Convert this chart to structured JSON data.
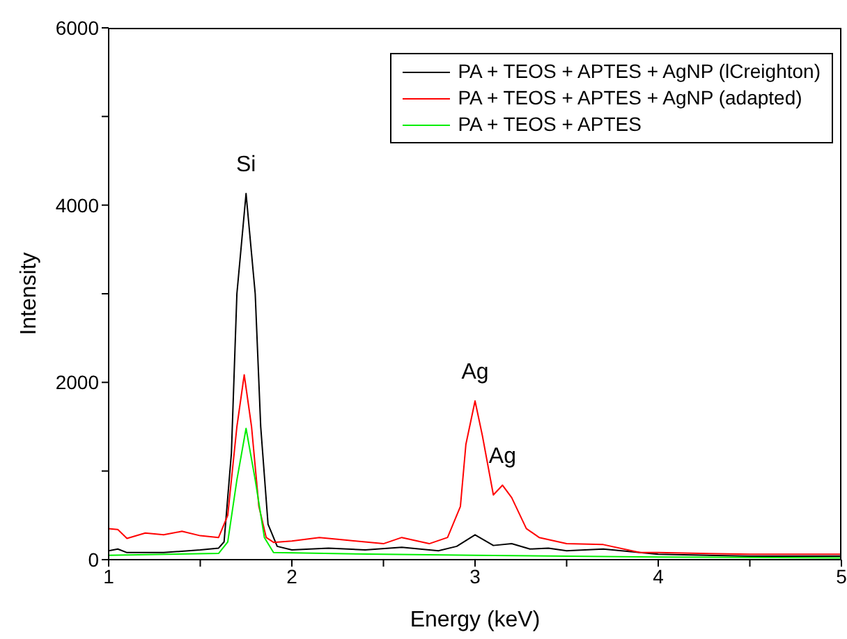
{
  "chart_data": {
    "type": "line",
    "xlabel": "Energy  (keV)",
    "ylabel": "Intensity",
    "xlim": [
      1,
      5
    ],
    "xticks": [
      1,
      {
        "value": 1.5,
        "label": null
      },
      2,
      {
        "value": 2.5,
        "label": null
      },
      3,
      {
        "value": 3.5,
        "label": null
      },
      4,
      {
        "value": 4.5,
        "label": null
      },
      5
    ],
    "ylim": [
      0,
      6000
    ],
    "yticks": [
      0,
      {
        "value": 1000,
        "label": null
      },
      2000,
      {
        "value": 3000,
        "label": null
      },
      4000,
      {
        "value": 5000,
        "label": null
      },
      6000
    ],
    "grid": false,
    "legend": "top right",
    "marker": "none",
    "line_style": "solid",
    "annotations": [
      {
        "text": "Si",
        "x": 1.75,
        "y": 4130
      },
      {
        "text": "Ag",
        "x": 3.0,
        "y": 1790
      },
      {
        "text": "Ag",
        "x": 3.15,
        "y": 840
      }
    ],
    "series": [
      {
        "name": "PA + TEOS + APTES + AgNP (lCreighton)",
        "color": "#000000",
        "x": [
          1.0,
          1.05,
          1.1,
          1.3,
          1.5,
          1.6,
          1.63,
          1.67,
          1.7,
          1.75,
          1.8,
          1.83,
          1.87,
          1.92,
          2.0,
          2.2,
          2.4,
          2.6,
          2.8,
          2.9,
          3.0,
          3.1,
          3.2,
          3.3,
          3.4,
          3.5,
          3.7,
          3.9,
          4.0,
          4.5,
          5.0
        ],
        "values": [
          100,
          120,
          80,
          80,
          110,
          130,
          200,
          1200,
          3000,
          4130,
          3000,
          1500,
          400,
          150,
          110,
          130,
          110,
          140,
          100,
          150,
          280,
          160,
          180,
          120,
          130,
          100,
          120,
          80,
          60,
          40,
          40
        ]
      },
      {
        "name": "PA + TEOS + APTES + AgNP (adapted)",
        "color": "#ff0000",
        "x": [
          1.0,
          1.05,
          1.1,
          1.2,
          1.3,
          1.4,
          1.5,
          1.6,
          1.65,
          1.7,
          1.74,
          1.78,
          1.82,
          1.86,
          1.9,
          2.0,
          2.15,
          2.3,
          2.5,
          2.6,
          2.75,
          2.85,
          2.92,
          2.95,
          3.0,
          3.04,
          3.1,
          3.15,
          3.2,
          3.28,
          3.35,
          3.5,
          3.7,
          3.9,
          4.0,
          4.5,
          5.0
        ],
        "values": [
          350,
          340,
          240,
          300,
          280,
          320,
          270,
          250,
          500,
          1500,
          2085,
          1500,
          600,
          250,
          195,
          210,
          250,
          220,
          180,
          250,
          180,
          250,
          600,
          1300,
          1790,
          1400,
          730,
          840,
          700,
          350,
          250,
          180,
          170,
          80,
          80,
          60,
          60
        ]
      },
      {
        "name": "PA + TEOS + APTES",
        "color": "#00ee00",
        "x": [
          1.0,
          1.6,
          1.65,
          1.7,
          1.75,
          1.8,
          1.85,
          1.9,
          2.5,
          3.0,
          4.0,
          5.0
        ],
        "values": [
          50,
          70,
          200,
          900,
          1480,
          900,
          250,
          80,
          60,
          50,
          30,
          20
        ]
      }
    ]
  }
}
